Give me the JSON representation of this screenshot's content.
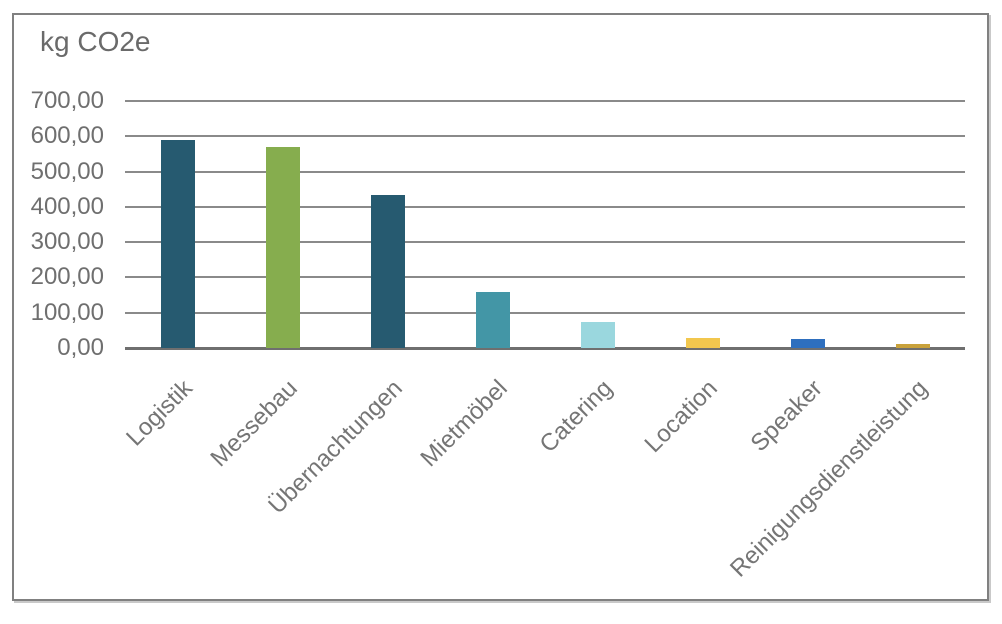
{
  "chart": {
    "title": "kg CO2e"
  },
  "chart_data": {
    "type": "bar",
    "title": "kg CO2e",
    "xlabel": "",
    "ylabel": "kg CO2e",
    "categories": [
      "Logistik",
      "Messebau",
      "Übernachtungen",
      "Mietmöbel",
      "Catering",
      "Location",
      "Speaker",
      "Reinigungsdienstleistung"
    ],
    "values": [
      590,
      570,
      435,
      160,
      75,
      28,
      25,
      10
    ],
    "bar_colors": [
      "#265A70",
      "#86AD4E",
      "#265A70",
      "#4396A6",
      "#9AD7DE",
      "#F2C74E",
      "#2E6FBE",
      "#C9A23B"
    ],
    "ylim": [
      0,
      700
    ],
    "ytick_step": 100,
    "yticks": [
      {
        "value": 700,
        "label": "700,00"
      },
      {
        "value": 600,
        "label": "600,00"
      },
      {
        "value": 500,
        "label": "500,00"
      },
      {
        "value": 400,
        "label": "400,00"
      },
      {
        "value": 300,
        "label": "300,00"
      },
      {
        "value": 200,
        "label": "200,00"
      },
      {
        "value": 100,
        "label": "100,00"
      },
      {
        "value": 0,
        "label": "0,00"
      }
    ],
    "grid": true,
    "legend": "none",
    "x_label_rotation_deg": -45
  },
  "colors": {
    "frame_border": "#808080",
    "gridline": "#8a8a8a",
    "axis_line": "#6f6f6f",
    "title_text": "#6a6a6a",
    "tick_text": "#6f6f6f",
    "background": "#ffffff"
  }
}
